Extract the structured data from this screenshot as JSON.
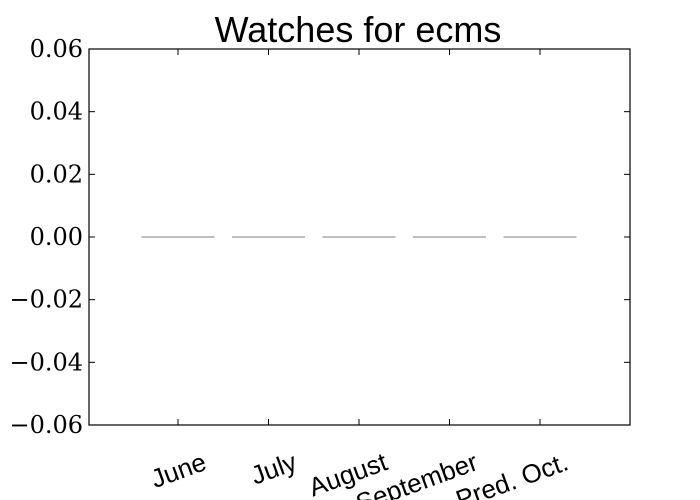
{
  "chart_data": {
    "type": "bar",
    "title": "Watches for ecms",
    "xlabel": "",
    "ylabel": "",
    "categories": [
      "June",
      "July",
      "August",
      "September",
      "Pred. Oct."
    ],
    "values": [
      0,
      0,
      0,
      0,
      0
    ],
    "ylim": [
      -0.06,
      0.06
    ],
    "yticks": [
      0.06,
      0.04,
      0.02,
      0.0,
      -0.02,
      -0.04,
      -0.06
    ],
    "ytick_labels": [
      "0.06",
      "0.04",
      "0.02",
      "0.00",
      "−0.02",
      "−0.04",
      "−0.06"
    ],
    "bar_color": "#808080",
    "grid": false,
    "legend": "none"
  }
}
